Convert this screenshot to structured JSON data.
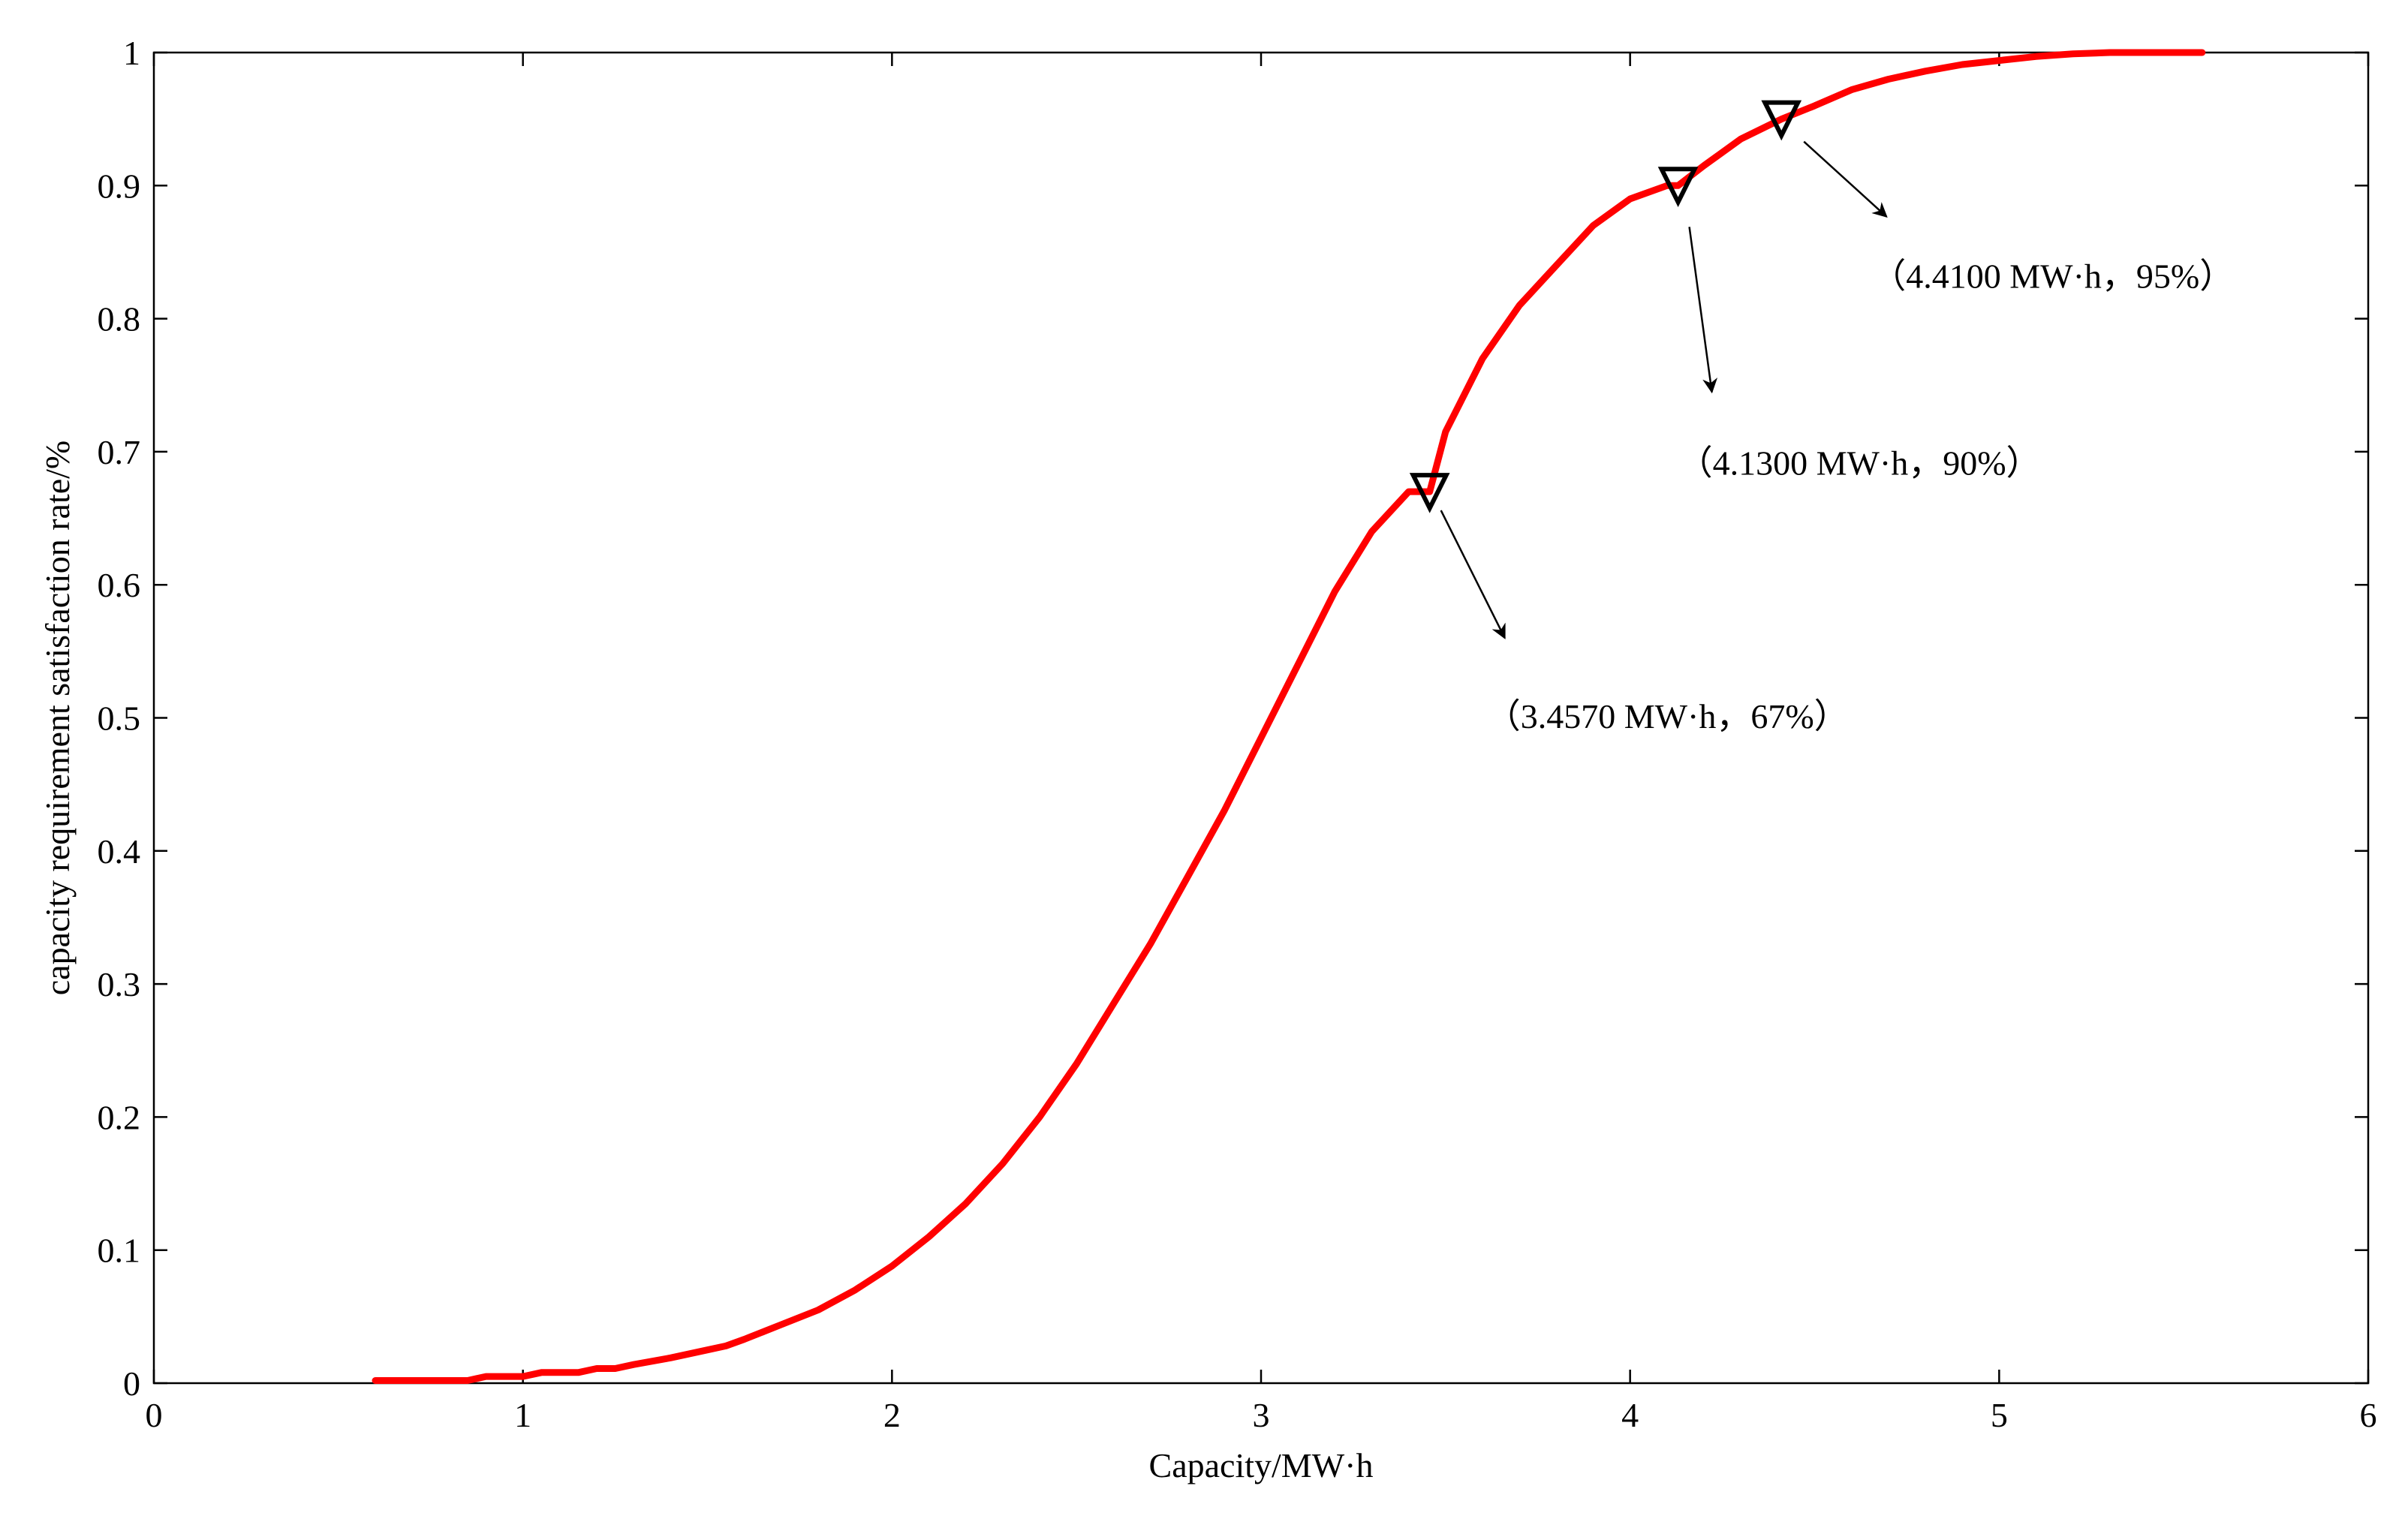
{
  "chart_data": {
    "type": "line",
    "title": "",
    "xlabel": "Capacity/MW·h",
    "ylabel": "capacity requirement satisfaction rate/%",
    "xlim": [
      0,
      6
    ],
    "ylim": [
      0,
      1
    ],
    "x_ticks": [
      0,
      1,
      2,
      3,
      4,
      5,
      6
    ],
    "x_tick_labels": [
      "0",
      "1",
      "2",
      "3",
      "4",
      "5",
      "6"
    ],
    "y_ticks": [
      0,
      0.1,
      0.2,
      0.3,
      0.4,
      0.5,
      0.6,
      0.7,
      0.8,
      0.9,
      1
    ],
    "y_tick_labels": [
      "0",
      "0.1",
      "0.2",
      "0.3",
      "0.4",
      "0.5",
      "0.6",
      "0.7",
      "0.8",
      "0.9",
      "1"
    ],
    "grid": false,
    "legend": "none",
    "series": [
      {
        "color": "#ff0000",
        "x": [
          0.6,
          0.85,
          0.9,
          1.0,
          1.05,
          1.15,
          1.2,
          1.25,
          1.3,
          1.4,
          1.5,
          1.55,
          1.6,
          1.7,
          1.8,
          1.9,
          2.0,
          2.1,
          2.2,
          2.3,
          2.4,
          2.5,
          2.6,
          2.7,
          2.8,
          2.9,
          3.0,
          3.1,
          3.2,
          3.3,
          3.4,
          3.457,
          3.5,
          3.6,
          3.7,
          3.8,
          3.9,
          4.0,
          4.1,
          4.13,
          4.2,
          4.3,
          4.41,
          4.5,
          4.6,
          4.7,
          4.8,
          4.9,
          5.0,
          5.1,
          5.2,
          5.3,
          5.4,
          5.55
        ],
        "y": [
          0.002,
          0.002,
          0.005,
          0.005,
          0.008,
          0.008,
          0.011,
          0.011,
          0.014,
          0.019,
          0.025,
          0.028,
          0.033,
          0.044,
          0.055,
          0.07,
          0.088,
          0.11,
          0.135,
          0.165,
          0.2,
          0.24,
          0.285,
          0.33,
          0.38,
          0.43,
          0.485,
          0.54,
          0.595,
          0.64,
          0.67,
          0.67,
          0.715,
          0.77,
          0.81,
          0.84,
          0.87,
          0.89,
          0.9,
          0.9,
          0.915,
          0.935,
          0.95,
          0.96,
          0.972,
          0.98,
          0.986,
          0.991,
          0.994,
          0.997,
          0.999,
          1.0,
          1.0,
          1.0
        ]
      }
    ],
    "annotations": [
      {
        "x": 3.457,
        "y": 0.67,
        "text": "（3.4570 MW·h，67%）",
        "marker": "down-triangle"
      },
      {
        "x": 4.13,
        "y": 0.9,
        "text": "（4.1300 MW·h，90%）",
        "marker": "down-triangle"
      },
      {
        "x": 4.41,
        "y": 0.95,
        "text": "（4.4100 MW·h，95%）",
        "marker": "down-triangle"
      }
    ]
  }
}
